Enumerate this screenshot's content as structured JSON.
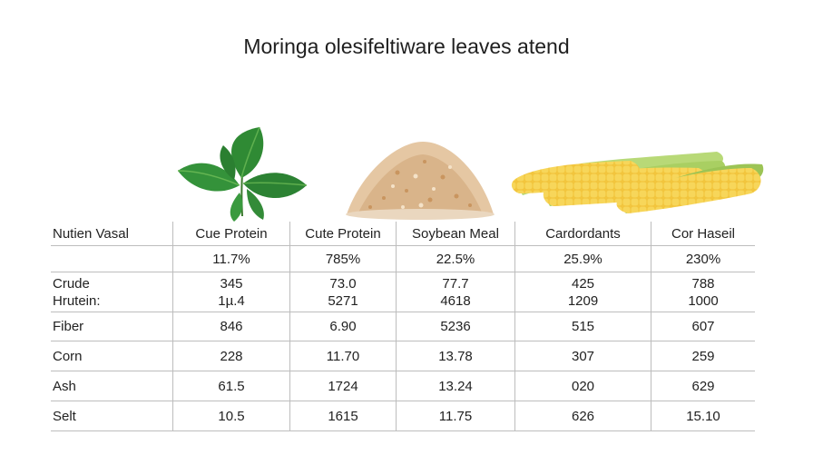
{
  "title": "Moringa olesifeltiware leaves atend",
  "illustrations": {
    "leaf": "moringa-leaf",
    "meal": "soybean-meal-pile",
    "corn": "corn-cobs"
  },
  "colors": {
    "leaf": "#2f8a34",
    "meal": "#d9b48a",
    "corn": "#f2c53d",
    "husk": "#a9cf62",
    "grid": "#bdbdbd"
  },
  "table": {
    "headers": [
      "Nutien Vasal",
      "Cue Protein",
      "Cute Protein",
      "Soybean Meal",
      "Cardordants",
      "Cor Haseil"
    ],
    "rows": [
      {
        "label": "",
        "cells": [
          "11.7%",
          "785%",
          "22.5%",
          "25.9%",
          "230%"
        ]
      },
      {
        "label": "Crude",
        "label2": "Hrutein:",
        "cells": [
          "345",
          "73.0",
          "77.7",
          "425",
          "788"
        ],
        "cells2": [
          "1µ.4",
          "5271",
          "4618",
          "1209",
          "1000"
        ]
      },
      {
        "label": "Fiber",
        "cells": [
          "846",
          "6.90",
          "5236",
          "515",
          "607"
        ]
      },
      {
        "label": "Corn",
        "cells": [
          "228",
          "11.70",
          "13.78",
          "307",
          "259"
        ]
      },
      {
        "label": "Ash",
        "cells": [
          "61.5",
          "1724",
          "13.24",
          "020",
          "629"
        ]
      },
      {
        "label": "Selt",
        "cells": [
          "10.5",
          "1615",
          "11.75",
          "626",
          "15.10"
        ]
      }
    ]
  }
}
